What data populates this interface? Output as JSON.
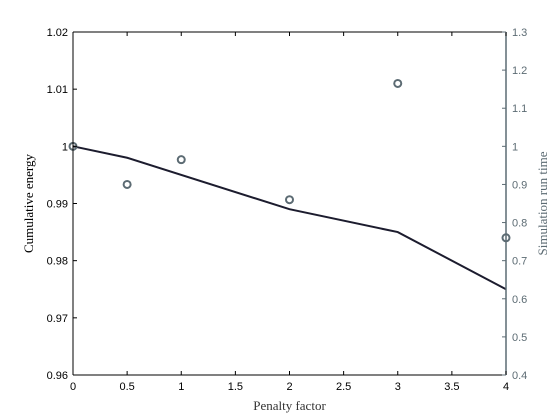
{
  "chart_data": {
    "type": "line",
    "title": "",
    "xlabel": "Penalty factor",
    "ylabel_left": "Cumulative energy",
    "ylabel_right": "Simulation run time",
    "xlim": [
      0,
      4
    ],
    "ylim_left": [
      0.96,
      1.02
    ],
    "ylim_right": [
      0.4,
      1.3
    ],
    "x_ticks": [
      "0",
      "0.5",
      "1",
      "1.5",
      "2",
      "2.5",
      "3",
      "3.5",
      "4"
    ],
    "y_left_ticks": [
      "0.96",
      "0.97",
      "0.98",
      "0.99",
      "1",
      "1.01",
      "1.02"
    ],
    "y_right_ticks": [
      "0.4",
      "0.5",
      "0.6",
      "0.7",
      "0.8",
      "0.9",
      "1",
      "1.1",
      "1.2",
      "1.3"
    ],
    "grid": false,
    "series": [
      {
        "axis": "left",
        "style": "line",
        "color": "#1c1c2e",
        "points": [
          [
            0,
            1.0
          ],
          [
            0.5,
            0.998
          ],
          [
            2,
            0.989
          ],
          [
            3,
            0.985
          ],
          [
            4,
            0.975
          ]
        ]
      },
      {
        "axis": "right",
        "style": "markers",
        "color": "#5c6b73",
        "points": [
          [
            0,
            1.0
          ],
          [
            0.5,
            0.9
          ],
          [
            1,
            0.965
          ],
          [
            2,
            0.86
          ],
          [
            3,
            1.165
          ],
          [
            4,
            0.76
          ]
        ]
      }
    ]
  }
}
